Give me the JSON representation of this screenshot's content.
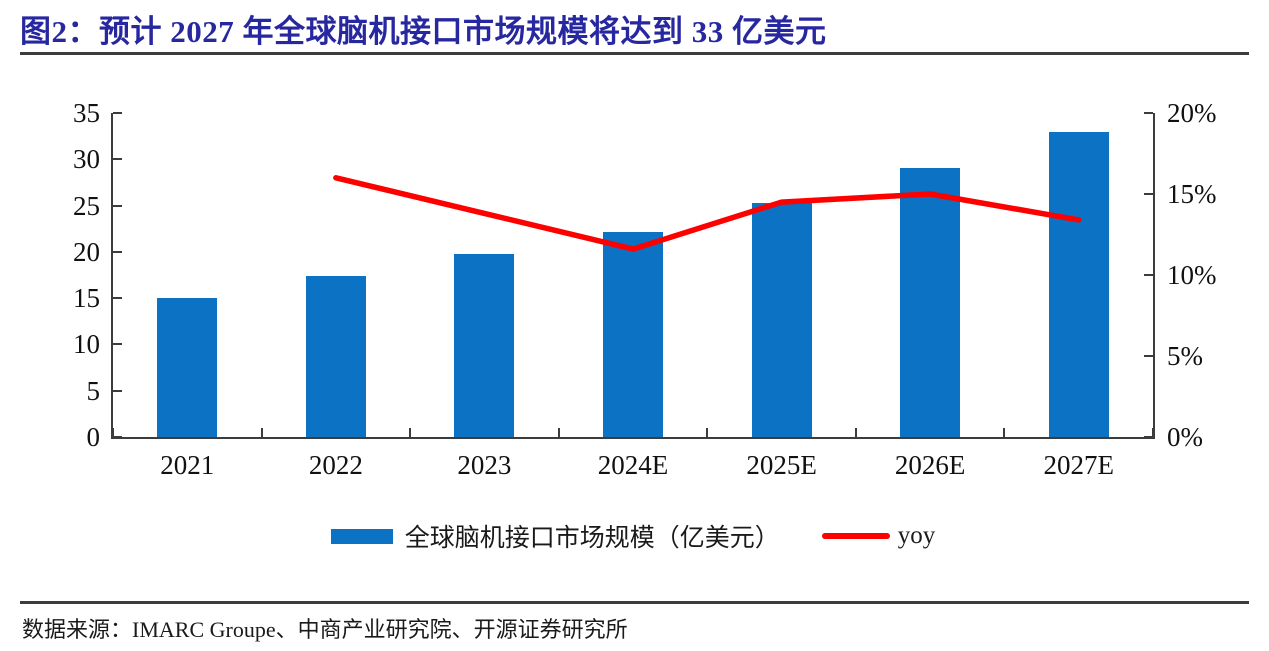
{
  "figure": {
    "title": "图2：预计 2027 年全球脑机接口市场规模将达到 33 亿美元",
    "source": "数据来源：IMARC Groupe、中商产业研究院、开源证券研究所"
  },
  "colors": {
    "title": "#2727A0",
    "bar": "#0B72C4",
    "line": "#FE0000",
    "axis": "#3C3C3C",
    "rule": "#3C3C3C",
    "text": "#111111"
  },
  "chart_data": {
    "type": "bar",
    "subtype": "bar+line combo, dual axis",
    "categories": [
      "2021",
      "2022",
      "2023",
      "2024E",
      "2025E",
      "2026E",
      "2027E"
    ],
    "series": [
      {
        "name": "全球脑机接口市场规模（亿美元）",
        "type": "bar",
        "axis": "left",
        "values": [
          15.0,
          17.4,
          19.8,
          22.1,
          25.3,
          29.1,
          33.0
        ]
      },
      {
        "name": "yoy",
        "type": "line",
        "axis": "right",
        "unit": "%",
        "values": [
          null,
          16.0,
          13.8,
          11.6,
          14.5,
          15.0,
          13.4
        ]
      }
    ],
    "left_axis": {
      "min": 0,
      "max": 35,
      "step": 5,
      "ticks": [
        "0",
        "5",
        "10",
        "15",
        "20",
        "25",
        "30",
        "35"
      ]
    },
    "right_axis": {
      "min": 0,
      "max": 20,
      "step": 5,
      "ticks": [
        "0%",
        "5%",
        "10%",
        "15%",
        "20%"
      ]
    },
    "grid": "off",
    "legend_position": "bottom-center",
    "legend": [
      {
        "swatch": "bar",
        "label": "全球脑机接口市场规模（亿美元）"
      },
      {
        "swatch": "line",
        "label": "yoy"
      }
    ]
  }
}
